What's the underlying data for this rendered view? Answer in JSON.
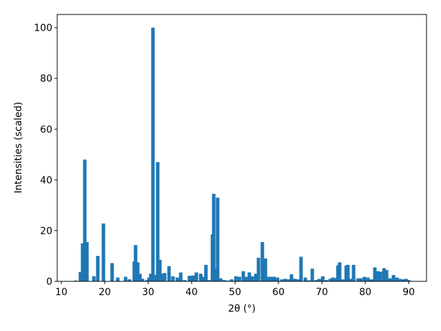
{
  "chart_data": {
    "type": "bar",
    "xlabel": "2θ (°)",
    "ylabel": "Intensities (scaled)",
    "color": "#1f77b4",
    "x": [
      13.3,
      14.4,
      14.9,
      15.4,
      15.9,
      17.5,
      18.4,
      19.7,
      21.7,
      23.0,
      24.8,
      25.7,
      26.8,
      27.1,
      27.6,
      28.1,
      28.7,
      29.7,
      30.2,
      30.6,
      31.1,
      31.7,
      32.2,
      32.7,
      33.2,
      33.8,
      34.8,
      35.7,
      36.7,
      37.5,
      38.4,
      39.5,
      40.3,
      41.1,
      42.1,
      42.7,
      43.3,
      44.1,
      44.8,
      45.1,
      45.6,
      46.0,
      46.7,
      47.5,
      48.3,
      49.2,
      50.2,
      51.0,
      51.9,
      52.5,
      53.3,
      54.0,
      54.8,
      55.4,
      56.3,
      57.0,
      57.8,
      58.4,
      59.0,
      59.8,
      60.8,
      61.6,
      62.4,
      63.0,
      63.8,
      64.6,
      65.2,
      66.2,
      67.0,
      67.8,
      68.7,
      69.4,
      70.2,
      71.0,
      71.9,
      72.5,
      73.2,
      73.7,
      74.1,
      74.8,
      75.6,
      76.0,
      76.8,
      77.3,
      78.3,
      79.0,
      79.8,
      80.6,
      81.4,
      82.2,
      82.9,
      83.5,
      84.3,
      84.9,
      85.7,
      86.5,
      87.3,
      87.9,
      88.7,
      89.4,
      90.0
    ],
    "values": [
      0.3,
      3.7,
      15,
      48,
      15.5,
      2,
      10,
      22.8,
      7.2,
      1.5,
      1.8,
      0.8,
      7.8,
      14.3,
      7.5,
      3,
      1,
      0.5,
      1.5,
      3,
      100,
      2.5,
      47,
      8.5,
      3,
      3.3,
      6,
      2,
      1.5,
      3.5,
      0.5,
      2.2,
      2.3,
      3.5,
      3,
      1.8,
      6.5,
      0.5,
      18.5,
      34.5,
      5,
      33,
      1.2,
      0.5,
      0.3,
      0.8,
      2,
      1.8,
      4,
      1.8,
      3.5,
      2,
      3,
      9.3,
      15.5,
      9,
      1.8,
      1.8,
      1.8,
      1.5,
      0.8,
      1,
      0.8,
      2.8,
      1,
      0.8,
      9.7,
      1.5,
      0.4,
      5,
      0.5,
      1,
      2,
      0.5,
      1,
      1.5,
      1.3,
      6.3,
      7.5,
      0.8,
      6.2,
      6.5,
      1,
      6.5,
      1.2,
      1.2,
      1.8,
      1.5,
      0.8,
      5.5,
      4,
      3.8,
      5.2,
      4.5,
      1.2,
      2.5,
      1.5,
      1,
      0.8,
      1,
      0.5
    ],
    "xlim": [
      9.05,
      94.1
    ],
    "ylim": [
      0,
      105.2
    ],
    "xticks": [
      10,
      20,
      30,
      40,
      50,
      60,
      70,
      80,
      90
    ],
    "yticks": [
      0,
      20,
      40,
      60,
      80,
      100
    ]
  }
}
